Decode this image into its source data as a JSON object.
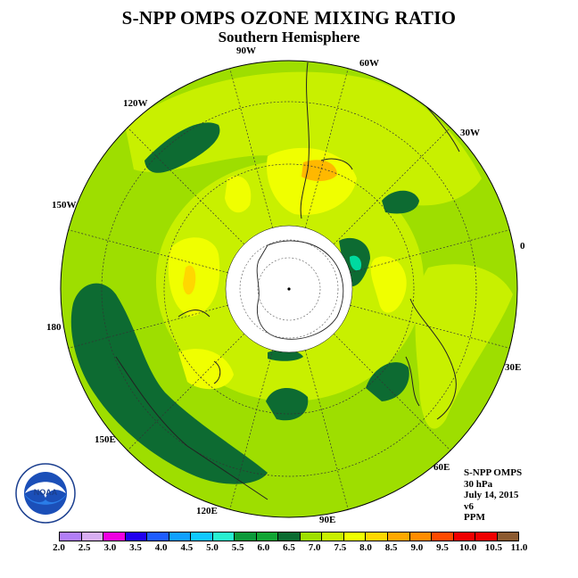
{
  "header": {
    "title": "S-NPP OMPS OZONE MIXING RATIO",
    "subtitle": "Southern Hemisphere"
  },
  "map": {
    "projection": "south polar stereographic",
    "hemisphere": "Southern",
    "polar_night_mask": "white",
    "longitude_labels": [
      "90W",
      "60W",
      "30W",
      "0",
      "30E",
      "60E",
      "90E",
      "120E",
      "150E",
      "180",
      "150W",
      "120W"
    ],
    "colors": {
      "ocean_background": "#9ede00",
      "level_7_5_to_8": "#c8f000",
      "level_8_to_8_5": "#f0ff00",
      "level_8_5_to_9": "#ffd700",
      "level_9_to_9_5": "#ffb800",
      "level_6_5_to_7": "#1a9a3c",
      "level_6_to_6_5": "#00d9a0",
      "level_7_to_7_5": "#0d6b32",
      "coastline": "#222222",
      "graticule": "#333333"
    }
  },
  "info": {
    "instrument": "S-NPP OMPS",
    "level": "30 hPa",
    "date": "July 14, 2015",
    "version": "v6",
    "units": "PPM"
  },
  "colorbar": {
    "colors": [
      "#b27ff7",
      "#d8aef2",
      "#f000e0",
      "#2000f0",
      "#1e5cff",
      "#0fa0ff",
      "#10c8ff",
      "#28f0d0",
      "#0c9a3a",
      "#11a534",
      "#0a6b30",
      "#9ede00",
      "#c8f000",
      "#f0ff00",
      "#ffd700",
      "#ffa800",
      "#ff8c00",
      "#ff4a00",
      "#f00000",
      "#ef0000",
      "#8c5a30"
    ],
    "ticks": [
      "2.0",
      "2.5",
      "3.0",
      "3.5",
      "4.0",
      "4.5",
      "5.0",
      "5.5",
      "6.0",
      "6.5",
      "7.0",
      "7.5",
      "8.0",
      "8.5",
      "9.0",
      "9.5",
      "10.0",
      "10.5",
      "11.0"
    ]
  },
  "logo": {
    "text": "NOAA",
    "ring_text": "NATIONAL OCEANIC AND ATMOSPHERIC ADMINISTRATION · U.S. DEPARTMENT OF COMMERCE"
  }
}
